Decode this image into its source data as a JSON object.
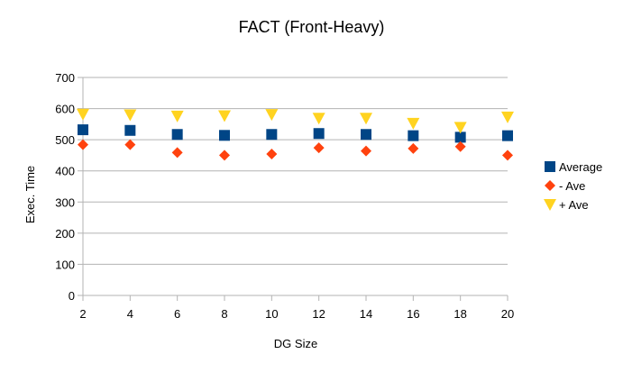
{
  "chart_data": {
    "type": "scatter",
    "title": "FACT (Front-Heavy)",
    "xlabel": "DG Size",
    "ylabel": "Exec. Time",
    "x": [
      2,
      4,
      6,
      8,
      10,
      12,
      14,
      16,
      18,
      20
    ],
    "xlim": [
      2,
      20
    ],
    "ylim": [
      0,
      700
    ],
    "yticks": [
      0,
      100,
      200,
      300,
      400,
      500,
      600,
      700
    ],
    "xticks": [
      2,
      4,
      6,
      8,
      10,
      12,
      14,
      16,
      18,
      20
    ],
    "grid": "horizontal",
    "legend_position": "right",
    "series": [
      {
        "name": "Average",
        "marker": "square",
        "color": "#004586",
        "values": [
          532,
          530,
          517,
          514,
          517,
          520,
          517,
          513,
          508,
          513
        ]
      },
      {
        "name": "- Ave",
        "marker": "diamond",
        "color": "#ff420e",
        "values": [
          484,
          484,
          459,
          450,
          454,
          474,
          464,
          472,
          478,
          450
        ]
      },
      {
        "name": "+ Ave",
        "marker": "triangle-down",
        "color": "#ffd320",
        "values": [
          582,
          580,
          576,
          577,
          581,
          569,
          569,
          553,
          540,
          573
        ]
      }
    ]
  }
}
